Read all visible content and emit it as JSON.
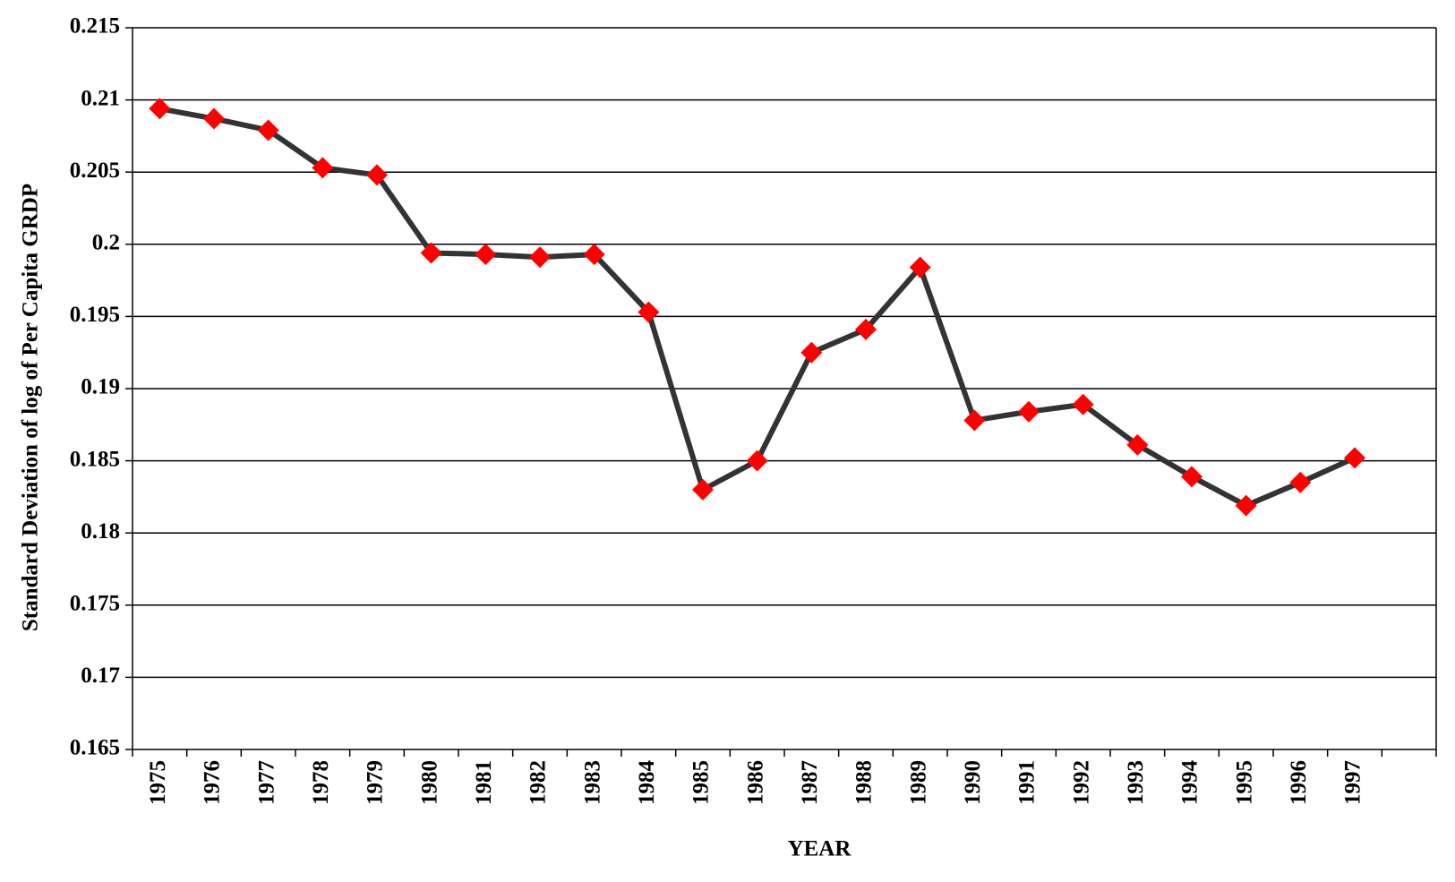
{
  "chart_data": {
    "type": "line",
    "x_label": "YEAR",
    "y_label": "Standard Deviation of log of Per Capita GRDP",
    "categories": [
      "1975",
      "1976",
      "1977",
      "1978",
      "1979",
      "1980",
      "1981",
      "1982",
      "1983",
      "1984",
      "1985",
      "1986",
      "1987",
      "1988",
      "1989",
      "1990",
      "1991",
      "1992",
      "1993",
      "1994",
      "1995",
      "1996",
      "1997"
    ],
    "series": [
      {
        "line_color": "#333333",
        "marker_color": "#ff0000",
        "values": [
          0.2094,
          0.2087,
          0.2079,
          0.2053,
          0.2048,
          0.1994,
          0.1993,
          0.1991,
          0.1993,
          0.1953,
          0.183,
          0.185,
          0.1925,
          0.1941,
          0.1984,
          0.1878,
          0.1884,
          0.1889,
          0.1861,
          0.1839,
          0.1819,
          0.1835,
          0.1852
        ]
      }
    ],
    "ylim": [
      0.165,
      0.215
    ],
    "yticks": [
      0.165,
      0.17,
      0.175,
      0.18,
      0.185,
      0.19,
      0.195,
      0.2,
      0.205,
      0.21,
      0.215
    ],
    "grid": true
  }
}
